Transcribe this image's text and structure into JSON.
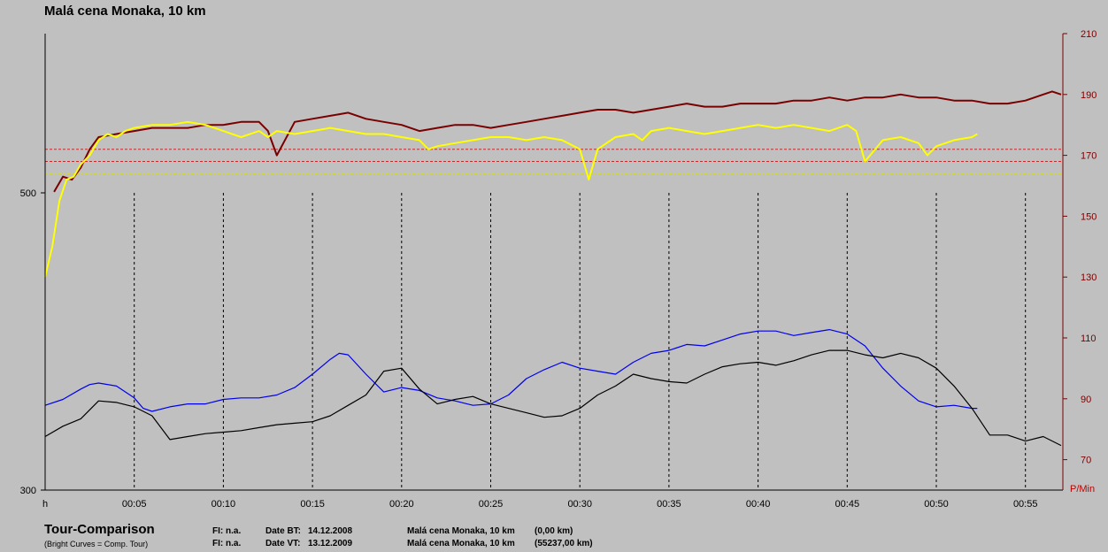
{
  "page": {
    "title": "Malá cena Monaka, 10 km"
  },
  "chart_data": {
    "type": "line",
    "title": "Malá cena Monaka, 10 km",
    "x_unit": "h",
    "x_range": [
      0,
      57.1
    ],
    "x_ticks": [
      {
        "value": 5,
        "label": "00:05"
      },
      {
        "value": 10,
        "label": "00:10"
      },
      {
        "value": 15,
        "label": "00:15"
      },
      {
        "value": 20,
        "label": "00:20"
      },
      {
        "value": 25,
        "label": "00:25"
      },
      {
        "value": 30,
        "label": "00:30"
      },
      {
        "value": 35,
        "label": "00:35"
      },
      {
        "value": 40,
        "label": "00:40"
      },
      {
        "value": 45,
        "label": "00:45"
      },
      {
        "value": 50,
        "label": "00:50"
      },
      {
        "value": 55,
        "label": "00:55"
      }
    ],
    "y_left": {
      "range": [
        300,
        500
      ],
      "ticks": [
        "300",
        "500"
      ]
    },
    "y_right": {
      "label": "P/Min",
      "range": [
        60,
        210
      ],
      "ticks": [
        "70",
        "90",
        "110",
        "130",
        "150",
        "170",
        "190",
        "210"
      ]
    },
    "reference_lines_right": [
      {
        "value": 172,
        "color": "#c82828"
      },
      {
        "value": 168,
        "color": "#c82828"
      },
      {
        "value": 164,
        "color": "#d8d820"
      }
    ],
    "series": [
      {
        "color": "#7a0000",
        "axis": "right",
        "x": [
          0.5,
          1,
          1.5,
          2,
          2.5,
          3,
          4,
          5,
          6,
          7,
          8,
          9,
          10,
          11,
          12,
          12.5,
          13,
          14,
          15,
          16,
          17,
          18,
          19,
          20,
          21,
          22,
          23,
          24,
          25,
          26,
          27,
          28,
          29,
          30,
          31,
          32,
          33,
          34,
          35,
          36,
          37,
          38,
          39,
          40,
          41,
          42,
          43,
          44,
          45,
          46,
          47,
          48,
          49,
          50,
          51,
          52,
          53,
          54,
          55,
          56,
          56.5,
          57
        ],
        "y": [
          158,
          163,
          162,
          166,
          172,
          176,
          177,
          178,
          179,
          179,
          179,
          180,
          180,
          181,
          181,
          178,
          170,
          181,
          182,
          183,
          184,
          182,
          181,
          180,
          178,
          179,
          180,
          180,
          179,
          180,
          181,
          182,
          183,
          184,
          185,
          185,
          184,
          185,
          186,
          187,
          186,
          186,
          187,
          187,
          187,
          188,
          188,
          189,
          188,
          189,
          189,
          190,
          189,
          189,
          188,
          188,
          187,
          187,
          188,
          190,
          191,
          190
        ]
      },
      {
        "color": "#ffff00",
        "axis": "right",
        "x": [
          0,
          0.4,
          0.8,
          1.2,
          1.6,
          2,
          2.5,
          3,
          3.5,
          4,
          4.5,
          5,
          6,
          7,
          8,
          9,
          10,
          11,
          12,
          12.5,
          13,
          14,
          15,
          16,
          17,
          18,
          19,
          20,
          21,
          21.5,
          22,
          23,
          24,
          25,
          26,
          27,
          28,
          29,
          30,
          30.5,
          31,
          32,
          33,
          33.5,
          34,
          35,
          36,
          37,
          38,
          39,
          40,
          41,
          42,
          43,
          44,
          45,
          45.5,
          46,
          47,
          48,
          49,
          49.5,
          50,
          51,
          52,
          52.3
        ],
        "y": [
          130,
          140,
          155,
          162,
          163,
          167,
          170,
          175,
          177,
          176,
          178,
          179,
          180,
          180,
          181,
          180,
          178,
          176,
          178,
          176,
          178,
          177,
          178,
          179,
          178,
          177,
          177,
          176,
          175,
          172,
          173,
          174,
          175,
          176,
          176,
          175,
          176,
          175,
          172,
          162,
          172,
          176,
          177,
          175,
          178,
          179,
          178,
          177,
          178,
          179,
          180,
          179,
          180,
          179,
          178,
          180,
          178,
          168,
          175,
          176,
          174,
          170,
          173,
          175,
          176,
          177
        ]
      },
      {
        "color": "#0000ee",
        "axis": "left",
        "x": [
          0,
          1,
          2,
          2.5,
          3,
          4,
          5,
          5.5,
          6,
          7,
          8,
          9,
          10,
          11,
          12,
          13,
          14,
          15,
          16,
          16.5,
          17,
          18,
          19,
          20,
          21,
          22,
          23,
          24,
          25,
          26,
          27,
          28,
          29,
          30,
          31,
          32,
          33,
          34,
          35,
          36,
          37,
          38,
          39,
          40,
          41,
          42,
          43,
          44,
          45,
          46,
          47,
          48,
          49,
          50,
          51,
          52,
          52.3
        ],
        "y": [
          357,
          361,
          368,
          371,
          372,
          370,
          362,
          355,
          353,
          356,
          358,
          358,
          361,
          362,
          362,
          364,
          369,
          378,
          388,
          392,
          391,
          378,
          366,
          369,
          367,
          362,
          360,
          357,
          358,
          364,
          375,
          381,
          386,
          382,
          380,
          378,
          386,
          392,
          394,
          398,
          397,
          401,
          405,
          407,
          407,
          404,
          406,
          408,
          405,
          397,
          382,
          370,
          360,
          356,
          357,
          355,
          355
        ]
      },
      {
        "color": "#000000",
        "axis": "left",
        "x": [
          0,
          1,
          2,
          3,
          4,
          5,
          6,
          7,
          8,
          9,
          10,
          11,
          12,
          13,
          14,
          15,
          16,
          17,
          18,
          19,
          20,
          21,
          22,
          23,
          24,
          25,
          26,
          27,
          28,
          29,
          30,
          31,
          32,
          33,
          34,
          35,
          36,
          37,
          38,
          39,
          40,
          41,
          42,
          43,
          44,
          45,
          46,
          47,
          48,
          49,
          50,
          51,
          52,
          53,
          54,
          55,
          56,
          57
        ],
        "y": [
          336,
          343,
          348,
          360,
          359,
          356,
          350,
          334,
          336,
          338,
          339,
          340,
          342,
          344,
          345,
          346,
          350,
          357,
          364,
          380,
          382,
          368,
          358,
          361,
          363,
          358,
          355,
          352,
          349,
          350,
          355,
          364,
          370,
          378,
          375,
          373,
          372,
          378,
          383,
          385,
          386,
          384,
          387,
          391,
          394,
          394,
          391,
          389,
          392,
          389,
          382,
          370,
          355,
          337,
          337,
          333,
          336,
          330
        ]
      }
    ]
  },
  "footer": {
    "title": "Tour-Comparison",
    "subtitle": "(Bright Curves = Comp. Tour)",
    "rows": [
      {
        "fi": "FI: n.a.",
        "date_label": "Date BT:",
        "date": "14.12.2008",
        "tour": "Malá cena Monaka, 10 km",
        "km": "(0,00 km)"
      },
      {
        "fi": "FI: n.a.",
        "date_label": "Date VT:",
        "date": "13.12.2009",
        "tour": "Malá cena Monaka, 10 km",
        "km": "(55237,00 km)"
      }
    ]
  }
}
